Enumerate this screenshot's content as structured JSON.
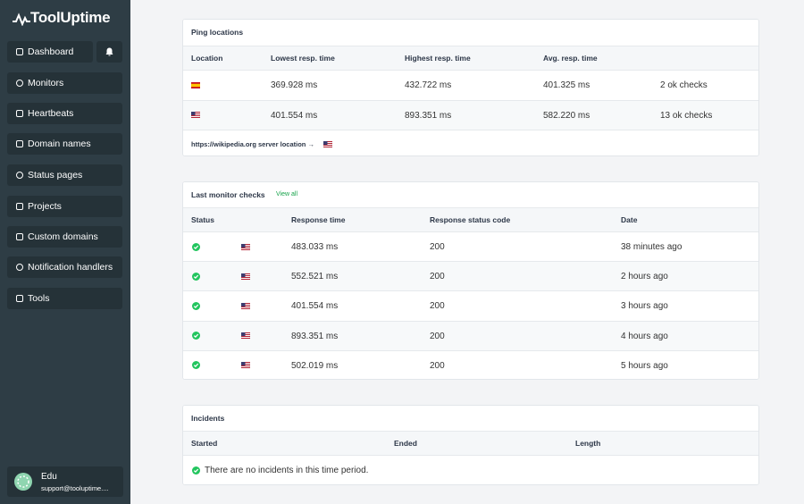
{
  "sidebar": {
    "brand": "ToolUptime",
    "nav": [
      "Dashboard",
      "Monitors",
      "Heartbeats",
      "Domain names",
      "Status pages",
      "Projects",
      "Custom domains",
      "Notification handlers",
      "Tools"
    ],
    "user": {
      "name": "Edu",
      "email": "support@tooluptime...."
    }
  },
  "ping_locations": {
    "title": "Ping locations",
    "headers": [
      "Location",
      "Lowest resp. time",
      "Highest resp. time",
      "Avg. resp. time"
    ],
    "rows": [
      [
        "369.928 ms",
        "432.722 ms",
        "401.325 ms",
        "2 ok checks"
      ],
      [
        "401.554 ms",
        "893.351 ms",
        "582.220 ms",
        "13 ok checks"
      ]
    ],
    "footer": "https://wikipedia.org server location →"
  },
  "last_checks": {
    "title": "Last monitor checks",
    "link": "View all",
    "headers": [
      "Status",
      "Response time",
      "Response status code",
      "Date"
    ],
    "rows": [
      [
        "483.033 ms",
        "200",
        "38 minutes ago"
      ],
      [
        "552.521 ms",
        "200",
        "2 hours ago"
      ],
      [
        "401.554 ms",
        "200",
        "3 hours ago"
      ],
      [
        "893.351 ms",
        "200",
        "4 hours ago"
      ],
      [
        "502.019 ms",
        "200",
        "5 hours ago"
      ]
    ]
  },
  "incidents": {
    "title": "Incidents",
    "headers": [
      "Started",
      "Ended",
      "Length"
    ],
    "empty": "There are no incidents in this time period."
  }
}
